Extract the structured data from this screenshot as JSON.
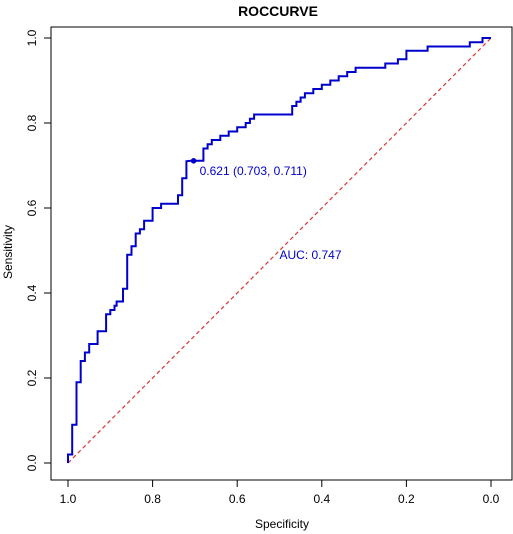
{
  "chart_data": {
    "type": "line",
    "title": "ROCCURVE",
    "xlabel": "Specificity",
    "ylabel": "Sensitivity",
    "x_reversed": true,
    "xlim": [
      1.0,
      0.0
    ],
    "ylim": [
      0.0,
      1.0
    ],
    "x_ticks": [
      "1.0",
      "0.8",
      "0.6",
      "0.4",
      "0.2",
      "0.0"
    ],
    "y_ticks": [
      "0.0",
      "0.2",
      "0.4",
      "0.6",
      "0.8",
      "1.0"
    ],
    "grid": false,
    "colors": {
      "roc": "#0000cc",
      "diagonal": "#dd3333",
      "text": "#0000cc"
    },
    "series": [
      {
        "specificity": [
          1.0,
          1.0,
          0.995,
          0.99,
          0.99,
          0.985,
          0.98,
          0.98,
          0.97,
          0.97,
          0.96,
          0.96,
          0.95,
          0.95,
          0.93,
          0.93,
          0.91,
          0.91,
          0.9,
          0.9,
          0.89,
          0.89,
          0.885,
          0.885,
          0.87,
          0.87,
          0.86,
          0.86,
          0.85,
          0.85,
          0.84,
          0.84,
          0.83,
          0.83,
          0.82,
          0.82,
          0.8,
          0.8,
          0.78,
          0.78,
          0.76,
          0.76,
          0.74,
          0.74,
          0.73,
          0.73,
          0.72,
          0.72,
          0.71,
          0.7,
          0.68,
          0.68,
          0.67,
          0.67,
          0.66,
          0.66,
          0.64,
          0.64,
          0.62,
          0.62,
          0.6,
          0.6,
          0.58,
          0.58,
          0.57,
          0.57,
          0.56,
          0.56,
          0.55,
          0.55,
          0.53,
          0.53,
          0.47,
          0.47,
          0.46,
          0.46,
          0.45,
          0.45,
          0.44,
          0.44,
          0.42,
          0.42,
          0.4,
          0.4,
          0.38,
          0.38,
          0.36,
          0.36,
          0.34,
          0.34,
          0.32,
          0.32,
          0.3,
          0.3,
          0.25,
          0.25,
          0.22,
          0.22,
          0.2,
          0.2,
          0.15,
          0.15,
          0.05,
          0.05,
          0.02,
          0.02,
          0.0
        ],
        "sensitivity": [
          0.0,
          0.02,
          0.02,
          0.02,
          0.09,
          0.09,
          0.09,
          0.19,
          0.19,
          0.24,
          0.24,
          0.26,
          0.26,
          0.28,
          0.28,
          0.31,
          0.31,
          0.35,
          0.35,
          0.36,
          0.36,
          0.37,
          0.37,
          0.38,
          0.38,
          0.41,
          0.41,
          0.49,
          0.49,
          0.51,
          0.51,
          0.54,
          0.54,
          0.55,
          0.55,
          0.57,
          0.57,
          0.6,
          0.6,
          0.61,
          0.61,
          0.61,
          0.61,
          0.63,
          0.63,
          0.67,
          0.67,
          0.71,
          0.711,
          0.711,
          0.711,
          0.74,
          0.74,
          0.75,
          0.75,
          0.76,
          0.76,
          0.77,
          0.77,
          0.78,
          0.78,
          0.79,
          0.79,
          0.8,
          0.8,
          0.81,
          0.81,
          0.82,
          0.82,
          0.82,
          0.82,
          0.82,
          0.82,
          0.84,
          0.84,
          0.85,
          0.85,
          0.86,
          0.86,
          0.87,
          0.87,
          0.88,
          0.88,
          0.89,
          0.89,
          0.9,
          0.9,
          0.91,
          0.91,
          0.92,
          0.92,
          0.93,
          0.93,
          0.93,
          0.93,
          0.94,
          0.94,
          0.95,
          0.95,
          0.97,
          0.97,
          0.98,
          0.98,
          0.99,
          0.99,
          1.0,
          1.0
        ]
      }
    ],
    "threshold_point": {
      "label": "0.621 (0.703, 0.711)",
      "specificity": 0.703,
      "sensitivity": 0.711
    },
    "auc_label": "AUC: 0.747",
    "diagonal": [
      [
        1.0,
        0.0
      ],
      [
        0.0,
        1.0
      ]
    ]
  }
}
